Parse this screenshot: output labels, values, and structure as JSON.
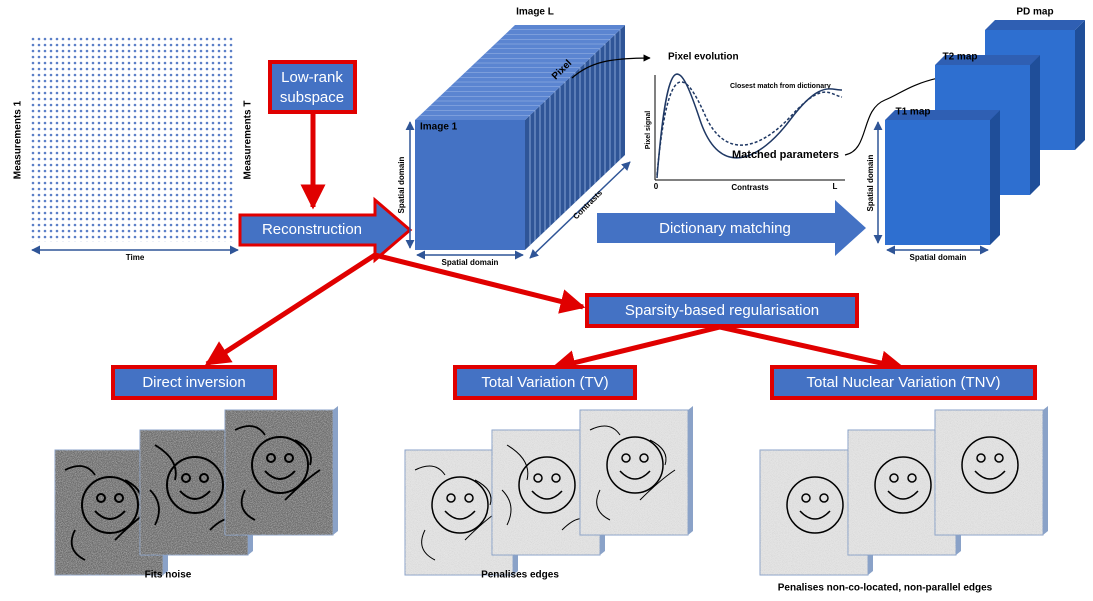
{
  "measurements": {
    "first": "Measurements 1",
    "last": "Measurements T",
    "time": "Time"
  },
  "low_rank": [
    "Low-rank",
    "subspace"
  ],
  "reconstruction": "Reconstruction",
  "image_stack": {
    "image_l": "Image L",
    "pixel": "Pixel",
    "image_1": "Image 1",
    "spatial_vertical": "Spatial domain",
    "spatial_horizontal": "Spatial domain",
    "contrasts": "Contrasts"
  },
  "pixel_plot": {
    "title": "Pixel evolution",
    "legend": "Closest match from dictionary",
    "y_label": "Pixel signal",
    "x_start": "0",
    "x_label": "Contrasts",
    "x_end": "L",
    "matched": "Matched parameters"
  },
  "dictionary_matching": "Dictionary matching",
  "maps": {
    "pd": "PD map",
    "t2": "T2 map",
    "t1": "T1 map",
    "spatial_vertical": "Spatial domain",
    "spatial_horizontal": "Spatial domain"
  },
  "sparsity": "Sparsity-based regularisation",
  "methods": [
    {
      "title": "Direct inversion",
      "caption": "Fits noise"
    },
    {
      "title": "Total Variation (TV)",
      "caption": "Penalises edges"
    },
    {
      "title": "Total Nuclear Variation (TNV)",
      "caption": "Penalises non-co-located, non-parallel edges"
    }
  ]
}
